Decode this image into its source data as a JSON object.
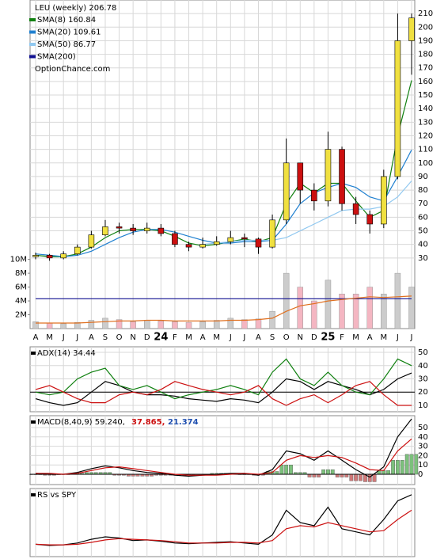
{
  "chart_data": [
    {
      "type": "candlestick",
      "title": "LEU (weekly) 206.78",
      "watermark": "OptionChance.com",
      "categories": [
        "A",
        "M",
        "J",
        "J",
        "A",
        "S",
        "O",
        "N",
        "D",
        "24",
        "F",
        "M",
        "A",
        "M",
        "J",
        "J",
        "A",
        "S",
        "O",
        "N",
        "D",
        "25",
        "F",
        "M",
        "A",
        "M",
        "J",
        "J"
      ],
      "open": [
        31,
        32,
        30,
        33,
        38,
        47,
        53,
        52,
        50,
        52,
        48,
        40,
        38,
        40,
        42,
        45,
        44,
        38,
        58,
        100,
        80,
        72,
        110,
        70,
        62,
        55,
        90,
        190
      ],
      "high": [
        34,
        33,
        35,
        40,
        50,
        58,
        56,
        55,
        56,
        55,
        50,
        42,
        45,
        46,
        50,
        48,
        45,
        62,
        118,
        100,
        85,
        123,
        112,
        75,
        65,
        95,
        210,
        210
      ],
      "low": [
        29,
        28,
        29,
        32,
        37,
        46,
        48,
        47,
        48,
        46,
        38,
        35,
        37,
        39,
        40,
        38,
        33,
        37,
        55,
        70,
        65,
        68,
        65,
        55,
        48,
        52,
        88,
        165
      ],
      "close": [
        32,
        30,
        33,
        38,
        47,
        53,
        52,
        50,
        52,
        48,
        40,
        38,
        40,
        42,
        45,
        44,
        38,
        58,
        100,
        80,
        72,
        110,
        70,
        62,
        55,
        90,
        190,
        206.78
      ],
      "up_color": "#f0e040",
      "down_color": "#cc1010",
      "series": [
        {
          "name": "SMA(8) 160.84",
          "color": "#108010",
          "values": [
            32,
            31,
            31,
            33,
            38,
            45,
            50,
            51,
            51,
            50,
            46,
            41,
            39,
            40,
            42,
            44,
            42,
            45,
            70,
            85,
            78,
            85,
            85,
            72,
            60,
            65,
            120,
            160.84
          ]
        },
        {
          "name": "SMA(20) 109.61",
          "color": "#2080d0",
          "values": [
            33,
            32,
            31,
            32,
            35,
            40,
            45,
            49,
            51,
            51,
            49,
            46,
            43,
            41,
            41,
            42,
            42,
            43,
            55,
            70,
            78,
            82,
            85,
            82,
            75,
            72,
            90,
            109.61
          ]
        },
        {
          "name": "SMA(50) 86.77",
          "color": "#90c8f0",
          "values": [
            null,
            null,
            null,
            null,
            null,
            null,
            null,
            null,
            null,
            null,
            null,
            null,
            40,
            41,
            42,
            43,
            43,
            43,
            45,
            50,
            55,
            60,
            65,
            66,
            66,
            68,
            75,
            86.77
          ]
        },
        {
          "name": "SMA(200)",
          "color": "#101090",
          "values": [
            0,
            0,
            0,
            0,
            0,
            0,
            0,
            0,
            0,
            0,
            0,
            0,
            0,
            0,
            0,
            0,
            0,
            0,
            0,
            0,
            0,
            0,
            0,
            0,
            0,
            0,
            0,
            0
          ]
        },
        {
          "color": "#e07020",
          "axis": "y2",
          "values": [
            0.8,
            0.8,
            0.8,
            0.8,
            0.9,
            1,
            1.1,
            1.1,
            1.2,
            1.2,
            1.1,
            1.1,
            1.1,
            1.1,
            1.2,
            1.2,
            1.3,
            1.5,
            2.5,
            3.3,
            3.6,
            4,
            4.2,
            4.4,
            4.6,
            4.5,
            4.6,
            4.7
          ]
        }
      ],
      "volume": [
        1,
        0.8,
        0.7,
        0.9,
        1.2,
        1.5,
        1.3,
        1,
        1.2,
        1.1,
        1,
        0.9,
        1,
        1.2,
        1.5,
        1.3,
        1.4,
        2.5,
        8,
        6,
        4,
        7,
        5,
        5,
        6,
        5,
        8,
        6
      ],
      "volume_up_color": "#cccccc",
      "volume_down_color": "#f4b6c2",
      "ylim": [
        -22,
        220
      ],
      "yticks": [
        30,
        40,
        50,
        60,
        70,
        80,
        90,
        100,
        110,
        120,
        130,
        140,
        150,
        160,
        170,
        180,
        190,
        200,
        210
      ],
      "y2lim": [
        0,
        47.5
      ],
      "y2ticks": [
        {
          "value": 2,
          "label": "2M"
        },
        {
          "value": 4,
          "label": "4M"
        },
        {
          "value": 6,
          "label": "6M"
        },
        {
          "value": 8,
          "label": "8M"
        },
        {
          "value": 10,
          "label": "10M"
        }
      ],
      "grid": true
    },
    {
      "type": "line",
      "title": "ADX(14) 34.44",
      "series": [
        {
          "color": "#000000",
          "values": [
            15,
            12,
            10,
            12,
            20,
            28,
            25,
            20,
            18,
            18,
            17,
            15,
            14,
            13,
            15,
            14,
            12,
            20,
            30,
            28,
            22,
            28,
            25,
            22,
            18,
            22,
            30,
            34.44
          ]
        },
        {
          "color": "#108010",
          "values": [
            20,
            18,
            20,
            30,
            35,
            38,
            25,
            22,
            25,
            20,
            15,
            18,
            20,
            22,
            25,
            22,
            18,
            35,
            45,
            30,
            25,
            35,
            25,
            20,
            18,
            30,
            45,
            40
          ]
        },
        {
          "color": "#cc1010",
          "values": [
            22,
            25,
            20,
            15,
            12,
            12,
            18,
            20,
            18,
            22,
            28,
            25,
            22,
            20,
            18,
            20,
            25,
            15,
            10,
            15,
            18,
            12,
            18,
            25,
            28,
            18,
            10,
            10
          ]
        }
      ],
      "reference_line": 20,
      "ylim": [
        5.2,
        54.2
      ],
      "yticks": [
        10,
        20,
        30,
        40,
        50
      ],
      "grid": true
    },
    {
      "type": "macd",
      "title": "MACD(8,40,9) 59.240,",
      "annotations": [
        {
          "text": "37.865,",
          "color": "#cc1010"
        },
        {
          "text": "21.374",
          "color": "#2050b0"
        }
      ],
      "series": [
        {
          "color": "#000000",
          "values": [
            1,
            0,
            0,
            2,
            6,
            9,
            7,
            4,
            2,
            1,
            -1,
            -2,
            -1,
            0,
            1,
            1,
            -1,
            5,
            25,
            22,
            15,
            25,
            15,
            5,
            -3,
            8,
            40,
            59.24
          ]
        },
        {
          "color": "#cc1010",
          "values": [
            1,
            1,
            0,
            1,
            4,
            7,
            8,
            6,
            4,
            2,
            0,
            -1,
            -1,
            -1,
            0,
            1,
            0,
            2,
            15,
            20,
            18,
            20,
            18,
            12,
            5,
            4,
            25,
            37.865
          ]
        }
      ],
      "histogram": [
        0,
        -1,
        0,
        1,
        2,
        2,
        -1,
        -2,
        -2,
        -1,
        -1,
        -1,
        0,
        1,
        1,
        0,
        -1,
        3,
        10,
        2,
        -3,
        5,
        -3,
        -7,
        -8,
        4,
        15,
        21.374
      ],
      "histogram_up_color": "#7cc07c",
      "histogram_down_color": "#d07878",
      "ylim": [
        -11,
        62.7
      ],
      "yticks": [
        0,
        10,
        20,
        30,
        40,
        50
      ],
      "grid": true
    },
    {
      "type": "line",
      "title": "RS vs SPY",
      "series": [
        {
          "color": "#000000",
          "values": [
            20,
            18,
            19,
            22,
            28,
            32,
            30,
            26,
            27,
            25,
            22,
            21,
            22,
            23,
            24,
            22,
            20,
            35,
            75,
            55,
            50,
            80,
            45,
            40,
            35,
            60,
            90,
            100
          ]
        },
        {
          "color": "#cc1010",
          "values": [
            20,
            19,
            19,
            20,
            23,
            27,
            29,
            28,
            27,
            26,
            24,
            22,
            22,
            22,
            23,
            23,
            22,
            26,
            45,
            50,
            48,
            55,
            50,
            45,
            40,
            42,
            60,
            75
          ]
        }
      ],
      "ylim": [
        0,
        110
      ],
      "yticks": [],
      "grid": true
    }
  ]
}
